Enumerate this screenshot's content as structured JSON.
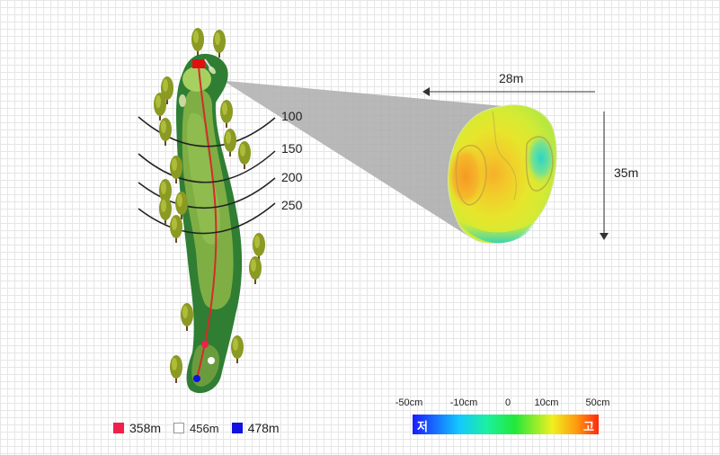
{
  "distance_markers": [
    "100",
    "150",
    "200",
    "250"
  ],
  "green_dimensions": {
    "width": "28m",
    "depth": "35m"
  },
  "tee_legend": [
    {
      "label": "358m",
      "color": "#f0204a"
    },
    {
      "label": "456m",
      "color": "#ffffff"
    },
    {
      "label": "478m",
      "color": "#1010e0"
    }
  ],
  "elevation_scale": {
    "ticks": [
      "-50cm",
      "-10cm",
      "0",
      "10cm",
      "50cm"
    ],
    "low_label": "저",
    "high_label": "고"
  },
  "colors": {
    "rough": "#2f7e33",
    "fairway": "#7fae45",
    "green": "#a6d060",
    "flag": "#e01010",
    "route": "#d62a2a"
  }
}
